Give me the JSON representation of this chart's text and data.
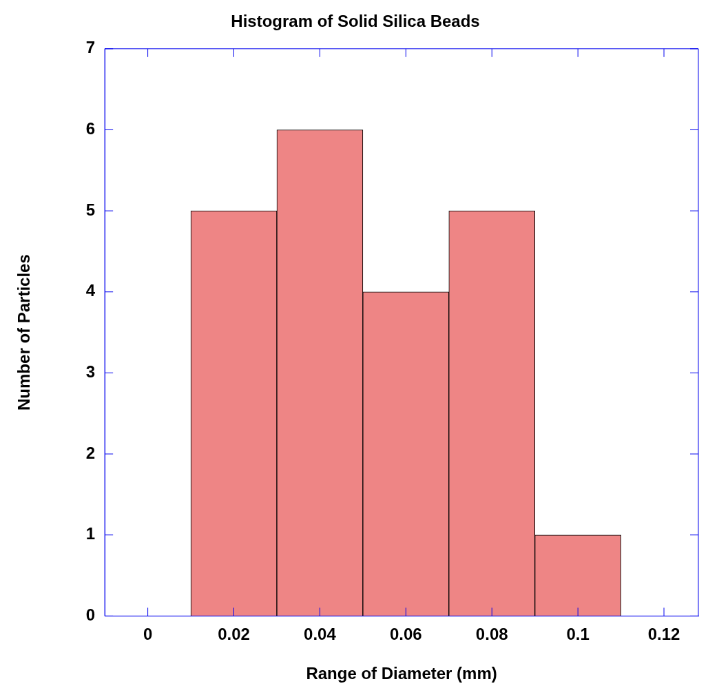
{
  "chart_data": {
    "type": "histogram",
    "title": "Histogram of Solid Silica Beads",
    "xlabel": "Range of Diameter (mm)",
    "ylabel": "Number of Particles",
    "bins": [
      0.01,
      0.03,
      0.05,
      0.07,
      0.09,
      0.11
    ],
    "values": [
      5,
      6,
      4,
      5,
      1
    ],
    "color": "#ee8585",
    "xlim": [
      -0.01,
      0.128
    ],
    "xticks": [
      0,
      0.02,
      0.04,
      0.06,
      0.08,
      0.1,
      0.12
    ],
    "ylim": [
      0,
      7
    ],
    "yticks": [
      0,
      1,
      2,
      3,
      4,
      5,
      6,
      7
    ],
    "grid": false,
    "legend": false
  }
}
